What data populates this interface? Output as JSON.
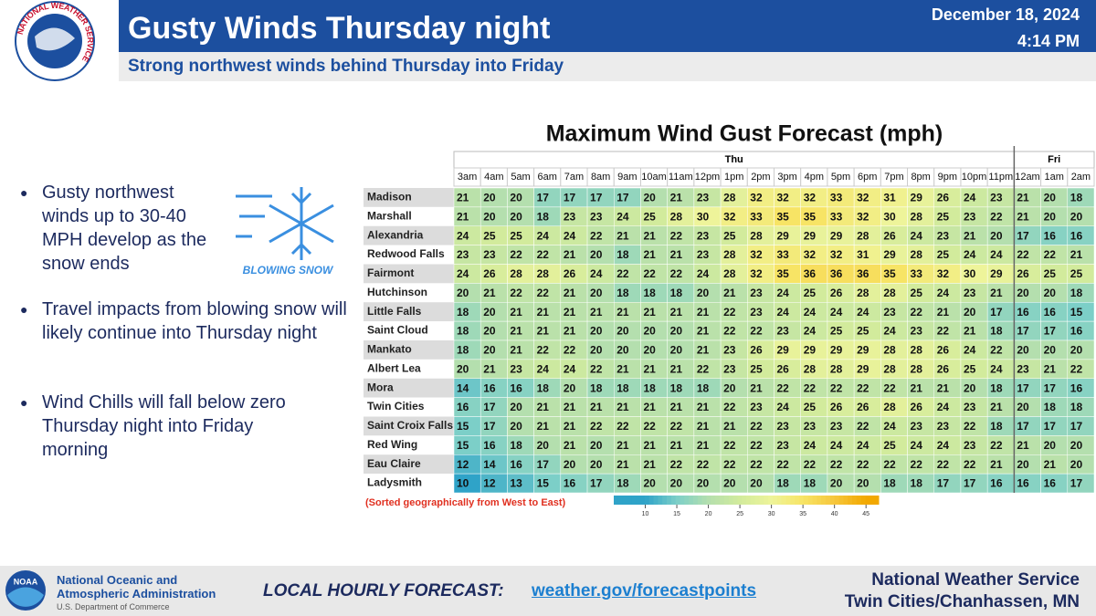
{
  "header": {
    "org_ring": "NATIONAL WEATHER SERVICE",
    "title": "Gusty Winds Thursday night",
    "subtitle": "Strong northwest winds behind Thursday into Friday",
    "date": "December 18, 2024",
    "time": "4:14 PM"
  },
  "bullets": [
    "Gusty northwest winds up to 30-40 MPH develop as the snow ends",
    "Travel impacts from blowing snow will likely continue into Thursday night",
    "Wind Chills will fall below zero Thursday night into Friday morning"
  ],
  "icon_label": "BLOWING SNOW",
  "chart_data": {
    "type": "heatmap",
    "title": "Maximum Wind Gust Forecast (mph)",
    "days": [
      "Thu",
      "Fri"
    ],
    "x": [
      "3am",
      "4am",
      "5am",
      "6am",
      "7am",
      "8am",
      "9am",
      "10am",
      "11am",
      "12pm",
      "1pm",
      "2pm",
      "3pm",
      "4pm",
      "5pm",
      "6pm",
      "7pm",
      "8pm",
      "9pm",
      "10pm",
      "11pm",
      "12am",
      "1am",
      "2am"
    ],
    "y": [
      "Madison",
      "Marshall",
      "Alexandria",
      "Redwood Falls",
      "Fairmont",
      "Hutchinson",
      "Little Falls",
      "Saint Cloud",
      "Mankato",
      "Albert Lea",
      "Mora",
      "Twin Cities",
      "Saint Croix Falls",
      "Red Wing",
      "Eau Claire",
      "Ladysmith"
    ],
    "values": [
      [
        21,
        20,
        20,
        17,
        17,
        17,
        17,
        20,
        21,
        23,
        28,
        32,
        32,
        32,
        33,
        32,
        31,
        29,
        26,
        24,
        23,
        21,
        20,
        18
      ],
      [
        21,
        20,
        20,
        18,
        23,
        23,
        24,
        25,
        28,
        30,
        32,
        33,
        35,
        35,
        33,
        32,
        30,
        28,
        25,
        23,
        22,
        21,
        20,
        20
      ],
      [
        24,
        25,
        25,
        24,
        24,
        22,
        21,
        21,
        22,
        23,
        25,
        28,
        29,
        29,
        29,
        28,
        26,
        24,
        23,
        21,
        20,
        17,
        16,
        16
      ],
      [
        23,
        23,
        22,
        22,
        21,
        20,
        18,
        21,
        21,
        23,
        28,
        32,
        33,
        32,
        32,
        31,
        29,
        28,
        25,
        24,
        24,
        22,
        22,
        21
      ],
      [
        24,
        26,
        28,
        28,
        26,
        24,
        22,
        22,
        22,
        24,
        28,
        32,
        35,
        36,
        36,
        36,
        35,
        33,
        32,
        30,
        29,
        26,
        25,
        25
      ],
      [
        20,
        21,
        22,
        22,
        21,
        20,
        18,
        18,
        18,
        20,
        21,
        23,
        24,
        25,
        26,
        28,
        28,
        25,
        24,
        23,
        21,
        20,
        20,
        18
      ],
      [
        18,
        20,
        21,
        21,
        21,
        21,
        21,
        21,
        21,
        21,
        22,
        23,
        24,
        24,
        24,
        24,
        23,
        22,
        21,
        20,
        17,
        16,
        16,
        15
      ],
      [
        18,
        20,
        21,
        21,
        21,
        20,
        20,
        20,
        20,
        21,
        22,
        22,
        23,
        24,
        25,
        25,
        24,
        23,
        22,
        21,
        18,
        17,
        17,
        16
      ],
      [
        18,
        20,
        21,
        22,
        22,
        20,
        20,
        20,
        20,
        21,
        23,
        26,
        29,
        29,
        29,
        29,
        28,
        28,
        26,
        24,
        22,
        20,
        20,
        20
      ],
      [
        20,
        21,
        23,
        24,
        24,
        22,
        21,
        21,
        21,
        22,
        23,
        25,
        26,
        28,
        28,
        29,
        28,
        28,
        26,
        25,
        24,
        23,
        21,
        22
      ],
      [
        14,
        16,
        16,
        18,
        20,
        18,
        18,
        18,
        18,
        18,
        20,
        21,
        22,
        22,
        22,
        22,
        22,
        21,
        21,
        20,
        18,
        17,
        17,
        16
      ],
      [
        16,
        17,
        20,
        21,
        21,
        21,
        21,
        21,
        21,
        21,
        22,
        23,
        24,
        25,
        26,
        26,
        28,
        26,
        24,
        23,
        21,
        20,
        18,
        18
      ],
      [
        15,
        17,
        20,
        21,
        21,
        22,
        22,
        22,
        22,
        21,
        21,
        22,
        23,
        23,
        23,
        22,
        24,
        23,
        23,
        22,
        18,
        17,
        17,
        17
      ],
      [
        15,
        16,
        18,
        20,
        21,
        20,
        21,
        21,
        21,
        21,
        22,
        22,
        23,
        24,
        24,
        24,
        25,
        24,
        24,
        23,
        22,
        21,
        20,
        20
      ],
      [
        12,
        14,
        16,
        17,
        20,
        20,
        21,
        21,
        22,
        22,
        22,
        22,
        22,
        22,
        22,
        22,
        22,
        22,
        22,
        22,
        21,
        20,
        21,
        20
      ],
      [
        10,
        12,
        13,
        15,
        16,
        17,
        18,
        20,
        20,
        20,
        20,
        20,
        18,
        18,
        20,
        20,
        18,
        18,
        17,
        17,
        16,
        16,
        16,
        17
      ]
    ],
    "note": "(Sorted geographically from West to East)",
    "clim": [
      5,
      47
    ],
    "colorbar_ticks": [
      10,
      15,
      20,
      25,
      30,
      35,
      40,
      45
    ],
    "colorbar_colors": [
      "#2fa3c8",
      "#7ccfc8",
      "#b4dfae",
      "#d2eb9c",
      "#eef49a",
      "#f7e465",
      "#f6c63c",
      "#f2a800"
    ]
  },
  "footer": {
    "agency": "National Oceanic and",
    "agency2": "Atmospheric Administration",
    "dept": "U.S. Department of Commerce",
    "logo": "NOAA",
    "cta": "LOCAL HOURLY FORECAST:",
    "link": "weather.gov/forecastpoints",
    "office": "National Weather Service",
    "office2": "Twin Cities/Chanhassen, MN"
  }
}
